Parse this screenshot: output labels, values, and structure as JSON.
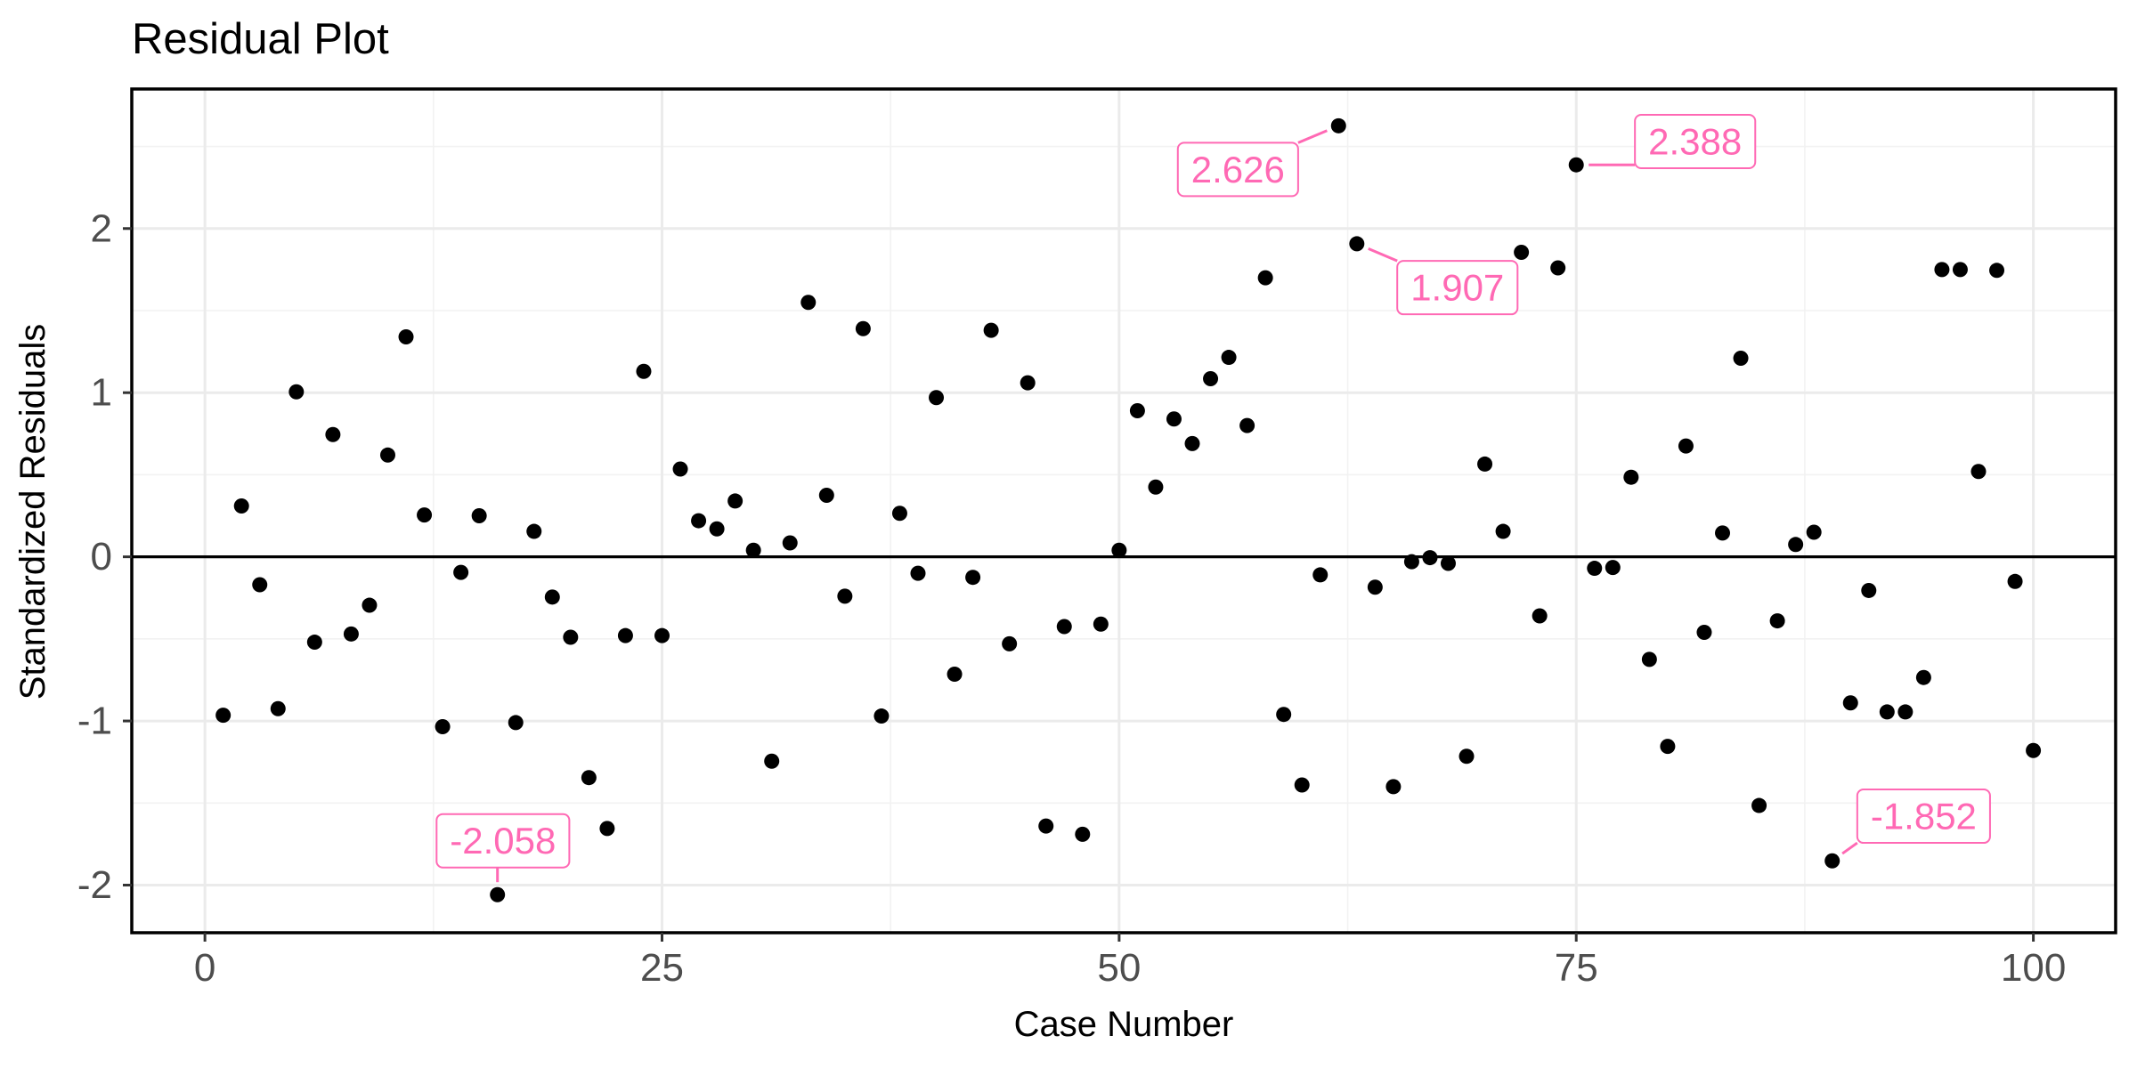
{
  "chart_data": {
    "type": "scatter",
    "title": "Residual Plot",
    "xlabel": "Case Number",
    "ylabel": "Standardized Residuals",
    "xlim": [
      -4,
      104.5
    ],
    "ylim": [
      -2.29,
      2.85
    ],
    "x_ticks": [
      0,
      25,
      50,
      75,
      100
    ],
    "y_ticks": [
      -2,
      -1,
      0,
      1,
      2
    ],
    "grid": true,
    "reference_line_y": 0,
    "point_color": "#000000",
    "annotation_color": "#ff69b4",
    "points": [
      {
        "x": 1,
        "y": -0.965
      },
      {
        "x": 2,
        "y": 0.31
      },
      {
        "x": 3,
        "y": -0.17
      },
      {
        "x": 4,
        "y": -0.925
      },
      {
        "x": 5,
        "y": 1.005
      },
      {
        "x": 6,
        "y": -0.52
      },
      {
        "x": 7,
        "y": 0.745
      },
      {
        "x": 8,
        "y": -0.47
      },
      {
        "x": 9,
        "y": -0.295
      },
      {
        "x": 10,
        "y": 0.62
      },
      {
        "x": 11,
        "y": 1.34
      },
      {
        "x": 12,
        "y": 0.255
      },
      {
        "x": 13,
        "y": -1.035
      },
      {
        "x": 14,
        "y": -0.095
      },
      {
        "x": 15,
        "y": 0.25
      },
      {
        "x": 16,
        "y": -2.058
      },
      {
        "x": 17,
        "y": -1.01
      },
      {
        "x": 18,
        "y": 0.155
      },
      {
        "x": 19,
        "y": -0.245
      },
      {
        "x": 20,
        "y": -0.49
      },
      {
        "x": 21,
        "y": -1.345
      },
      {
        "x": 22,
        "y": -1.655
      },
      {
        "x": 23,
        "y": -0.48
      },
      {
        "x": 24,
        "y": 1.13
      },
      {
        "x": 25,
        "y": -0.48
      },
      {
        "x": 26,
        "y": 0.535
      },
      {
        "x": 27,
        "y": 0.22
      },
      {
        "x": 28,
        "y": 0.17
      },
      {
        "x": 29,
        "y": 0.34
      },
      {
        "x": 30,
        "y": 0.04
      },
      {
        "x": 31,
        "y": -1.245
      },
      {
        "x": 32,
        "y": 0.085
      },
      {
        "x": 33,
        "y": 1.55
      },
      {
        "x": 34,
        "y": 0.375
      },
      {
        "x": 35,
        "y": -0.24
      },
      {
        "x": 36,
        "y": 1.39
      },
      {
        "x": 37,
        "y": -0.97
      },
      {
        "x": 38,
        "y": 0.265
      },
      {
        "x": 39,
        "y": -0.1
      },
      {
        "x": 40,
        "y": 0.97
      },
      {
        "x": 41,
        "y": -0.715
      },
      {
        "x": 42,
        "y": -0.125
      },
      {
        "x": 43,
        "y": 1.38
      },
      {
        "x": 44,
        "y": -0.53
      },
      {
        "x": 45,
        "y": 1.06
      },
      {
        "x": 46,
        "y": -1.64
      },
      {
        "x": 47,
        "y": -0.425
      },
      {
        "x": 48,
        "y": -1.69
      },
      {
        "x": 49,
        "y": -0.41
      },
      {
        "x": 50,
        "y": 0.04
      },
      {
        "x": 51,
        "y": 0.89
      },
      {
        "x": 52,
        "y": 0.425
      },
      {
        "x": 53,
        "y": 0.84
      },
      {
        "x": 54,
        "y": 0.69
      },
      {
        "x": 55,
        "y": 1.085
      },
      {
        "x": 56,
        "y": 1.215
      },
      {
        "x": 57,
        "y": 0.8
      },
      {
        "x": 58,
        "y": 1.7
      },
      {
        "x": 59,
        "y": -0.96
      },
      {
        "x": 60,
        "y": -1.39
      },
      {
        "x": 61,
        "y": -0.11
      },
      {
        "x": 62,
        "y": 2.626
      },
      {
        "x": 63,
        "y": 1.907
      },
      {
        "x": 64,
        "y": -0.185
      },
      {
        "x": 65,
        "y": -1.4
      },
      {
        "x": 66,
        "y": -0.03
      },
      {
        "x": 67,
        "y": -0.005
      },
      {
        "x": 68,
        "y": -0.04
      },
      {
        "x": 69,
        "y": -1.215
      },
      {
        "x": 70,
        "y": 0.565
      },
      {
        "x": 71,
        "y": 0.155
      },
      {
        "x": 72,
        "y": 1.855
      },
      {
        "x": 73,
        "y": -0.36
      },
      {
        "x": 74,
        "y": 1.76
      },
      {
        "x": 75,
        "y": 2.388
      },
      {
        "x": 76,
        "y": -0.07
      },
      {
        "x": 77,
        "y": -0.065
      },
      {
        "x": 78,
        "y": 0.485
      },
      {
        "x": 79,
        "y": -0.625
      },
      {
        "x": 80,
        "y": -1.155
      },
      {
        "x": 81,
        "y": 0.675
      },
      {
        "x": 82,
        "y": -0.46
      },
      {
        "x": 83,
        "y": 0.145
      },
      {
        "x": 84,
        "y": 1.21
      },
      {
        "x": 85,
        "y": -1.515
      },
      {
        "x": 86,
        "y": -0.39
      },
      {
        "x": 87,
        "y": 0.075
      },
      {
        "x": 88,
        "y": 0.15
      },
      {
        "x": 89,
        "y": -1.852
      },
      {
        "x": 90,
        "y": -0.89
      },
      {
        "x": 91,
        "y": -0.205
      },
      {
        "x": 92,
        "y": -0.945
      },
      {
        "x": 93,
        "y": -0.945
      },
      {
        "x": 94,
        "y": -0.735
      },
      {
        "x": 95,
        "y": 1.75
      },
      {
        "x": 96,
        "y": 1.75
      },
      {
        "x": 97,
        "y": 0.52
      },
      {
        "x": 98,
        "y": 1.745
      },
      {
        "x": 99,
        "y": -0.15
      },
      {
        "x": 100,
        "y": -1.18
      }
    ],
    "annotations": [
      {
        "label": "2.626",
        "x": 62,
        "y": 2.626,
        "label_x": 56.5,
        "label_y": 2.36
      },
      {
        "label": "2.388",
        "x": 75,
        "y": 2.388,
        "label_x": 81.5,
        "label_y": 2.53
      },
      {
        "label": "1.907",
        "x": 63,
        "y": 1.907,
        "label_x": 68.5,
        "label_y": 1.64
      },
      {
        "label": "-2.058",
        "x": 16,
        "y": -2.058,
        "label_x": 16.3,
        "label_y": -1.73
      },
      {
        "label": "-1.852",
        "x": 89,
        "y": -1.852,
        "label_x": 94.0,
        "label_y": -1.58
      }
    ]
  }
}
